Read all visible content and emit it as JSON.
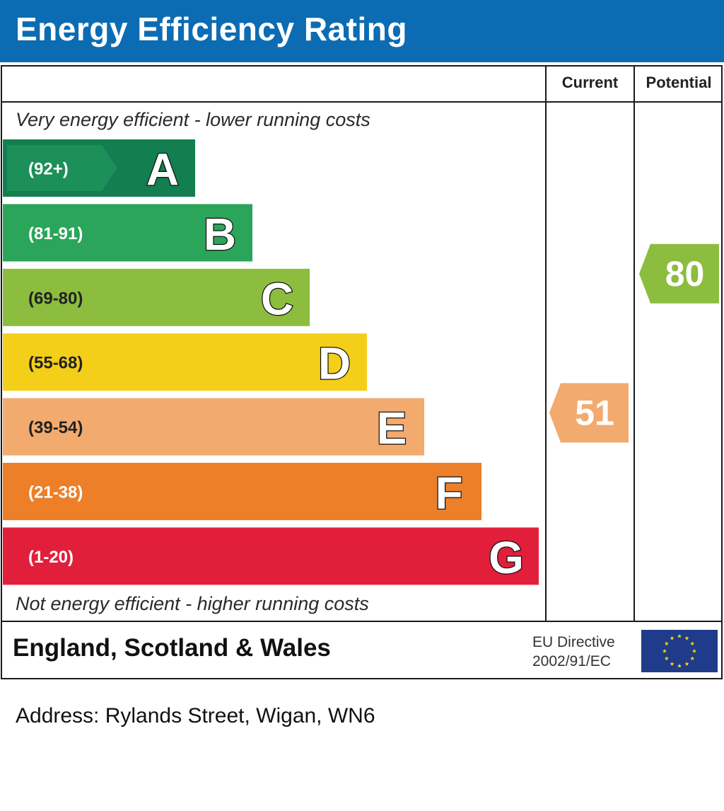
{
  "header": {
    "title": "Energy Efficiency Rating"
  },
  "columns": {
    "current": "Current",
    "potential": "Potential"
  },
  "notes": {
    "top": "Very energy efficient - lower running costs",
    "bottom": "Not energy efficient - higher running costs"
  },
  "chart_data": {
    "type": "bar",
    "categories": [
      "A",
      "B",
      "C",
      "D",
      "E",
      "F",
      "G"
    ],
    "ranges": [
      "(92+)",
      "(81-91)",
      "(69-80)",
      "(55-68)",
      "(39-54)",
      "(21-38)",
      "(1-20)"
    ],
    "range_min": [
      92,
      81,
      69,
      55,
      39,
      21,
      1
    ],
    "range_max": [
      100,
      91,
      80,
      68,
      54,
      38,
      20
    ],
    "colors": [
      "#137e4f",
      "#2aa55a",
      "#8cbd3f",
      "#f4cf1a",
      "#f2aa6f",
      "#ec7f28",
      "#e21f3a"
    ],
    "current": {
      "value": 51,
      "band": "E",
      "color": "#f2aa6f"
    },
    "potential": {
      "value": 80,
      "band": "C",
      "color": "#8cbd3f"
    }
  },
  "footer": {
    "region": "England, Scotland & Wales",
    "directive_line1": "EU Directive",
    "directive_line2": "2002/91/EC"
  },
  "address": "Address: Rylands Street, Wigan, WN6"
}
